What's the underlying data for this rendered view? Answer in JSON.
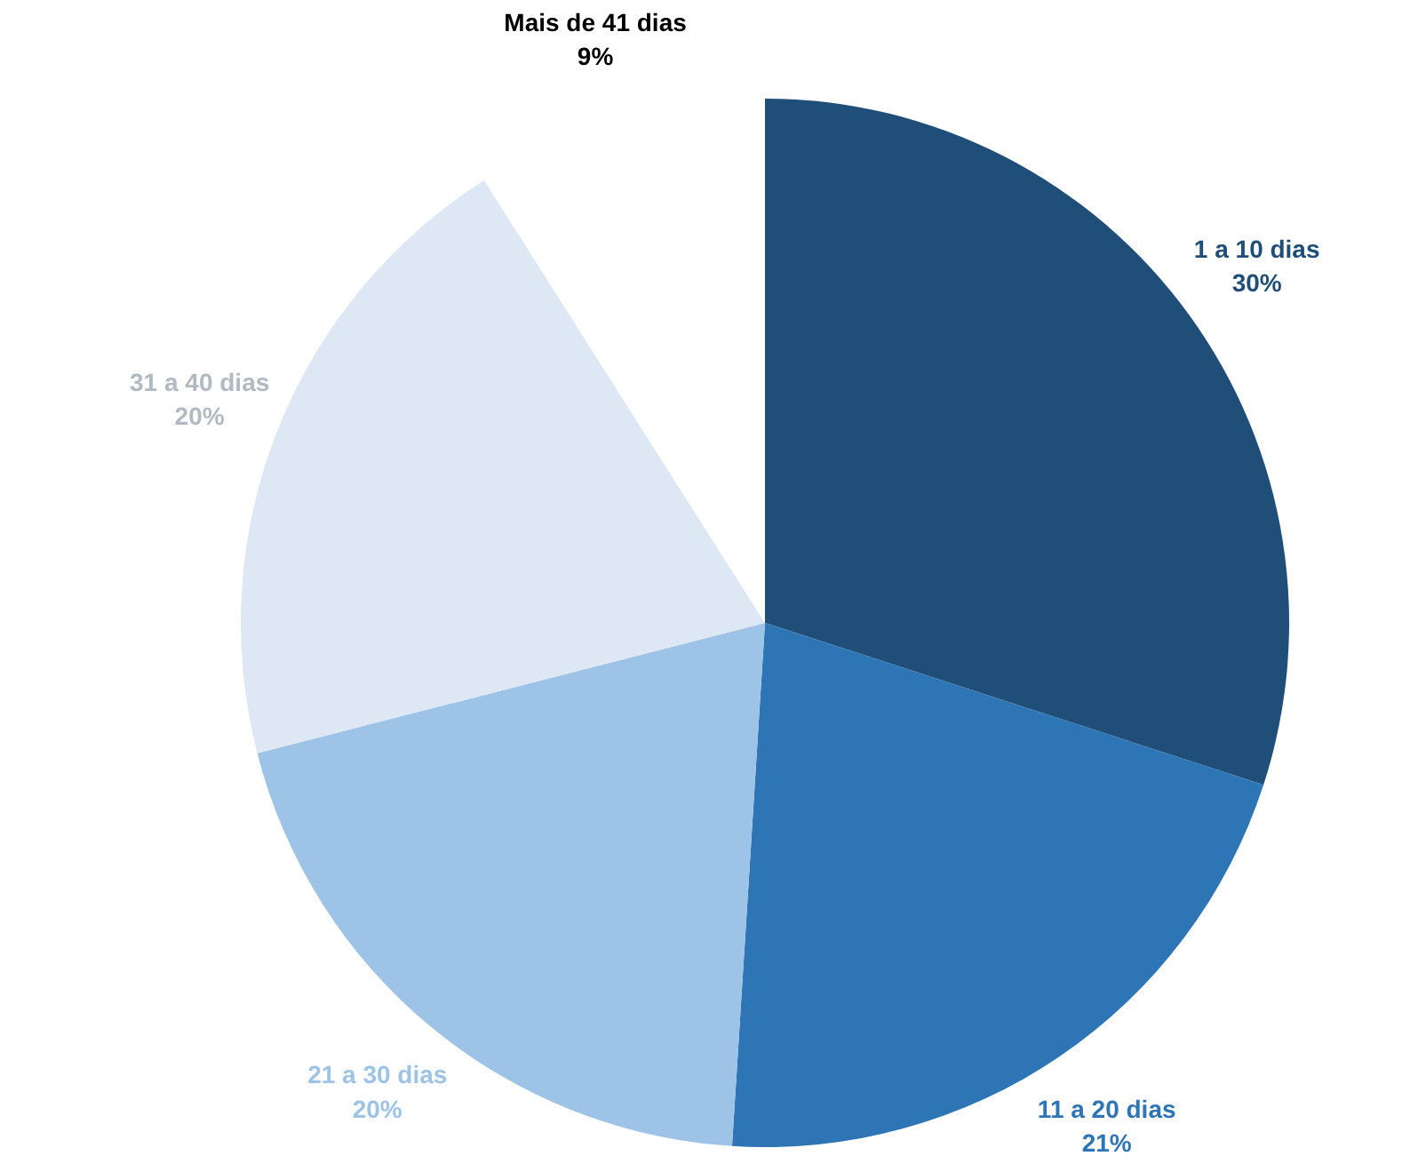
{
  "chart_data": {
    "type": "pie",
    "categories": [
      "1 a 10 dias",
      "11 a 20 dias",
      "21 a 30 dias",
      "31 a 40 dias",
      "Mais de 41 dias"
    ],
    "values": [
      30,
      21,
      20,
      20,
      9
    ],
    "colors": [
      "#1f4e79",
      "#2e75b6",
      "#9dc3e6",
      "#dee8f4",
      "#ffffff"
    ],
    "value_labels": [
      "30%",
      "21%",
      "20%",
      "20%",
      "9%"
    ]
  }
}
